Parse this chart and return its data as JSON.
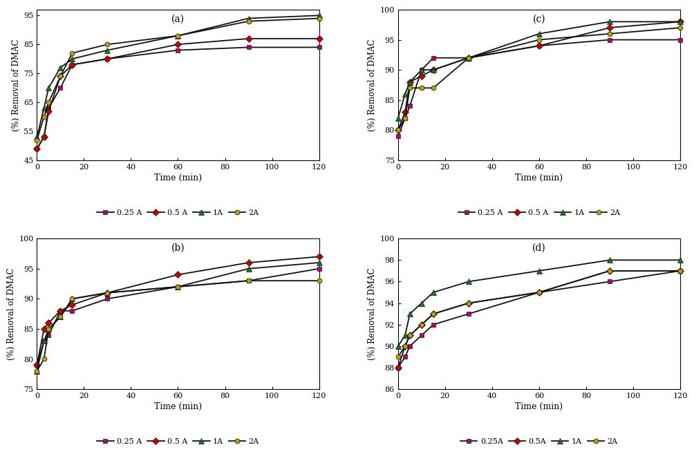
{
  "time_points": [
    0,
    3,
    5,
    10,
    15,
    30,
    60,
    90,
    120
  ],
  "subplot_a": {
    "label": "(a)",
    "ylim": [
      45,
      97
    ],
    "yticks": [
      45,
      55,
      65,
      75,
      85,
      95
    ],
    "series": {
      "0.25 A": [
        49,
        53,
        63,
        70,
        78,
        80,
        83,
        84,
        84
      ],
      "0.5 A": [
        49,
        53,
        62,
        74,
        78,
        80,
        85,
        87,
        87
      ],
      "1A": [
        53,
        63,
        70,
        77,
        80,
        83,
        88,
        94,
        95
      ],
      "2A": [
        52,
        60,
        65,
        74,
        82,
        85,
        88,
        93,
        94
      ]
    }
  },
  "subplot_b": {
    "label": "(b)",
    "ylim": [
      75,
      100
    ],
    "yticks": [
      75,
      80,
      85,
      90,
      95,
      100
    ],
    "series": {
      "0.25 A": [
        79,
        83,
        84,
        88,
        88,
        90,
        92,
        93,
        95
      ],
      "0.5 A": [
        79,
        85,
        86,
        88,
        89,
        91,
        94,
        96,
        97
      ],
      "1A": [
        78,
        83,
        85,
        87,
        90,
        91,
        92,
        95,
        96
      ],
      "2A": [
        78,
        80,
        85,
        87,
        90,
        91,
        92,
        93,
        93
      ]
    }
  },
  "subplot_c": {
    "label": "(c)",
    "ylim": [
      75,
      100
    ],
    "yticks": [
      75,
      80,
      85,
      90,
      95,
      100
    ],
    "series": {
      "0.25 A": [
        79,
        82,
        84,
        90,
        92,
        92,
        94,
        95,
        95
      ],
      "0.5 A": [
        80,
        83,
        88,
        89,
        90,
        92,
        94,
        97,
        98
      ],
      "1A": [
        82,
        86,
        88,
        90,
        90,
        92,
        96,
        98,
        98
      ],
      "2A": [
        80,
        82,
        87,
        87,
        87,
        92,
        95,
        96,
        97
      ]
    }
  },
  "subplot_d": {
    "label": "(d)",
    "ylim": [
      86,
      100
    ],
    "yticks": [
      86,
      88,
      90,
      92,
      94,
      96,
      98,
      100
    ],
    "series": {
      "0.25A": [
        88,
        89,
        90,
        91,
        92,
        93,
        95,
        96,
        97
      ],
      "0.5A": [
        88,
        90,
        91,
        92,
        93,
        94,
        95,
        97,
        97
      ],
      "1A": [
        90,
        91,
        93,
        94,
        95,
        96,
        97,
        98,
        98
      ],
      "2A": [
        89,
        90,
        91,
        92,
        93,
        94,
        95,
        97,
        97
      ]
    }
  },
  "series_styles": [
    {
      "label_abc": "0.25 A",
      "label_d": "0.25A",
      "color": "#B5006E",
      "marker": "s",
      "markersize": 5
    },
    {
      "label_abc": "0.5 A",
      "label_d": "0.5A",
      "color": "#C00000",
      "marker": "D",
      "markersize": 5
    },
    {
      "label_abc": "1A",
      "label_d": "1A",
      "color": "#1A7A1A",
      "marker": "^",
      "markersize": 6
    },
    {
      "label_abc": "2A",
      "label_d": "2A",
      "color": "#B8A000",
      "marker": "o",
      "markersize": 5
    }
  ],
  "line_color": "#111111",
  "line_width": 1.3,
  "figure_width": 10.34,
  "figure_height": 6.46,
  "dpi": 100
}
